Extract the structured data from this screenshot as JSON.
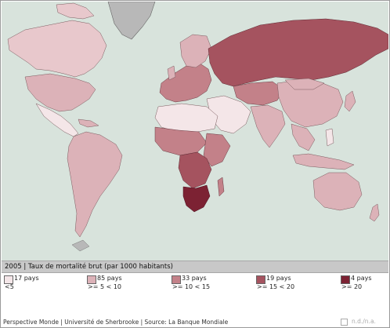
{
  "title": "2005 | Taux de mortalité brut (par 1000 habitants)",
  "legend": [
    {
      "count": "17 pays",
      "range": "<5",
      "color": "#f4e6e8"
    },
    {
      "count": "85 pays",
      "range": ">= 5 < 10",
      "color": "#dcb2b8"
    },
    {
      "count": "33 pays",
      "range": ">= 10 < 15",
      "color": "#c38189"
    },
    {
      "count": "19 pays",
      "range": ">= 15 < 20",
      "color": "#a5535f"
    },
    {
      "count": "4 pays",
      "range": ">= 20",
      "color": "#7c2233"
    }
  ],
  "footer": "Perspective Monde | Université de Sherbrooke | Source: La Banque Mondiale",
  "no_data_label": "n.d./n.a.",
  "colors": {
    "ocean": "#d8e3dc",
    "no_data": "#b8b8b8",
    "lowest": "#f4e6e8"
  }
}
